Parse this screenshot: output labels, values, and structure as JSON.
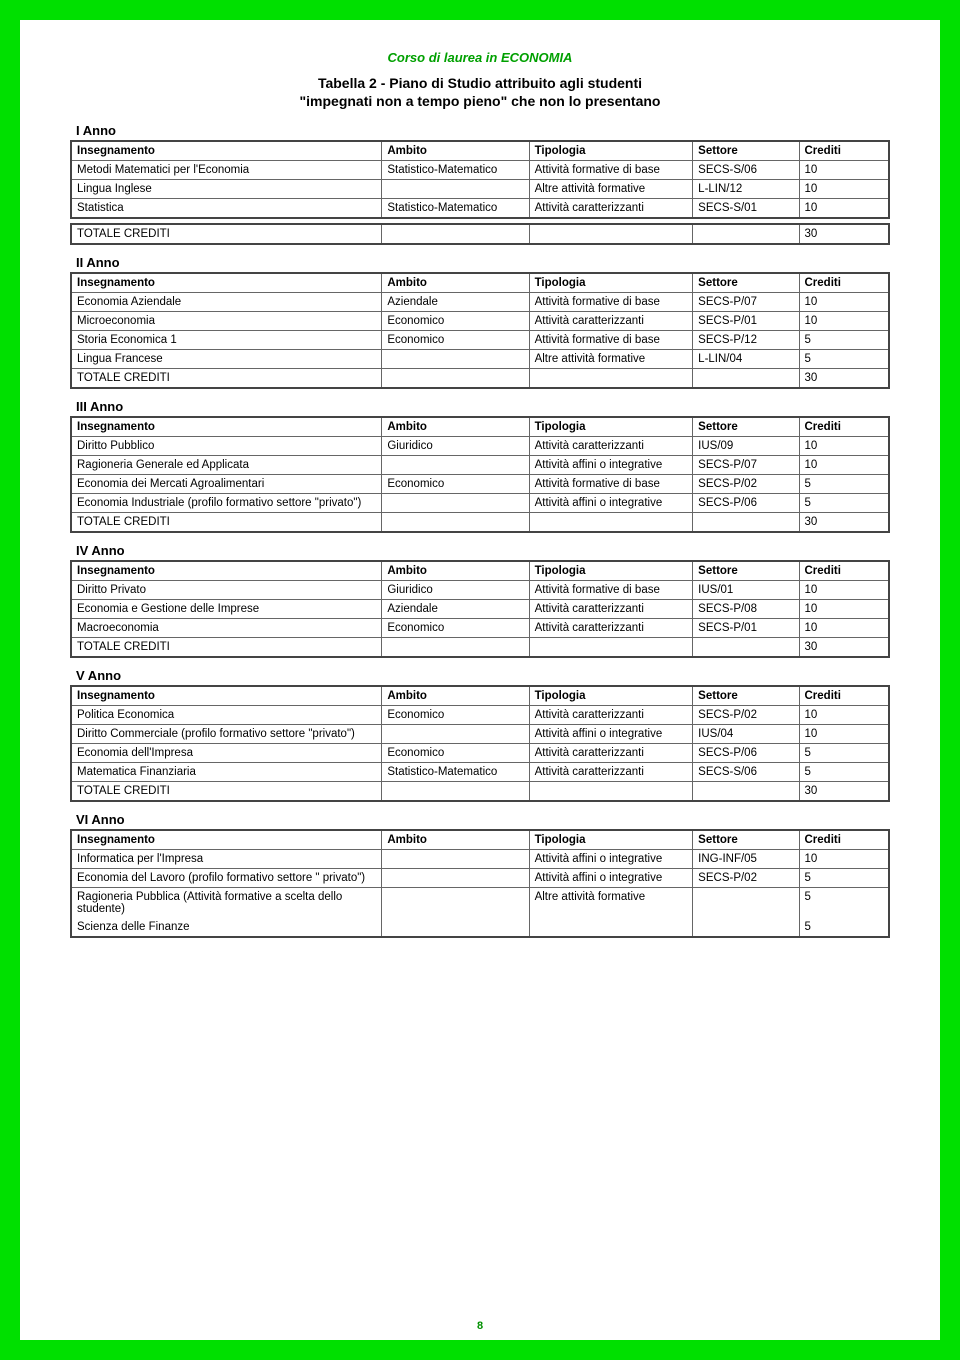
{
  "header": {
    "course": "Corso di laurea in ECONOMIA"
  },
  "titles": {
    "main": "Tabella 2 - Piano di Studio attribuito agli studenti",
    "sub": "\"impegnati non a tempo pieno\" che non lo presentano"
  },
  "columns": {
    "c1": "Insegnamento",
    "c2": "Ambito",
    "c3": "Tipologia",
    "c4": "Settore",
    "c5": "Crediti"
  },
  "total_label": "TOTALE CREDITI",
  "years": {
    "y1": {
      "label": "I Anno",
      "rows": [
        {
          "ins": "Metodi Matematici per l'Economia",
          "amb": "Statistico-Matematico",
          "tip": "Attività formative di base",
          "set": "SECS-S/06",
          "cre": "10"
        },
        {
          "ins": "Lingua Inglese",
          "amb": "",
          "tip": "Altre attività formative",
          "set": "L-LIN/12",
          "cre": "10"
        },
        {
          "ins": "Statistica",
          "amb": "Statistico-Matematico",
          "tip": "Attività caratterizzanti",
          "set": "SECS-S/01",
          "cre": "10"
        }
      ],
      "total": "30"
    },
    "y2": {
      "label": "II Anno",
      "rows": [
        {
          "ins": "Economia Aziendale",
          "amb": "Aziendale",
          "tip": "Attività formative di base",
          "set": "SECS-P/07",
          "cre": "10"
        },
        {
          "ins": "Microeconomia",
          "amb": "Economico",
          "tip": "Attività caratterizzanti",
          "set": "SECS-P/01",
          "cre": "10"
        },
        {
          "ins": "Storia Economica 1",
          "amb": "Economico",
          "tip": "Attività formative di base",
          "set": "SECS-P/12",
          "cre": "5"
        },
        {
          "ins": "Lingua Francese",
          "amb": "",
          "tip": "Altre attività formative",
          "set": "L-LIN/04",
          "cre": "5"
        }
      ],
      "total": "30"
    },
    "y3": {
      "label": "III Anno",
      "rows": [
        {
          "ins": "Diritto Pubblico",
          "amb": "Giuridico",
          "tip": "Attività caratterizzanti",
          "set": "IUS/09",
          "cre": "10"
        },
        {
          "ins": "Ragioneria Generale ed Applicata",
          "amb": "",
          "tip": "Attività affini o integrative",
          "set": "SECS-P/07",
          "cre": "10"
        },
        {
          "ins": "Economia dei Mercati Agroalimentari",
          "amb": "Economico",
          "tip": "Attività formative di base",
          "set": "SECS-P/02",
          "cre": "5"
        },
        {
          "ins": "Economia Industriale  (profilo formativo settore \"privato\")",
          "amb": "",
          "tip": "Attività affini o integrative",
          "set": "SECS-P/06",
          "cre": "5"
        }
      ],
      "total": "30"
    },
    "y4": {
      "label": "IV Anno",
      "rows": [
        {
          "ins": "Diritto Privato",
          "amb": "Giuridico",
          "tip": "Attività formative di base",
          "set": "IUS/01",
          "cre": "10"
        },
        {
          "ins": "Economia e Gestione delle Imprese",
          "amb": "Aziendale",
          "tip": "Attività caratterizzanti",
          "set": "SECS-P/08",
          "cre": "10"
        },
        {
          "ins": "Macroeconomia",
          "amb": "Economico",
          "tip": "Attività caratterizzanti",
          "set": "SECS-P/01",
          "cre": "10"
        }
      ],
      "total": "30"
    },
    "y5": {
      "label": "V Anno",
      "rows": [
        {
          "ins": "Politica Economica",
          "amb": "Economico",
          "tip": "Attività caratterizzanti",
          "set": "SECS-P/02",
          "cre": "10"
        },
        {
          "ins": "Diritto Commerciale (profilo formativo settore \"privato\")",
          "amb": "",
          "tip": "Attività affini o integrative",
          "set": "IUS/04",
          "cre": "10"
        },
        {
          "ins": "Economia dell'Impresa",
          "amb": "Economico",
          "tip": "Attività caratterizzanti",
          "set": "SECS-P/06",
          "cre": "5"
        },
        {
          "ins": "Matematica Finanziaria",
          "amb": "Statistico-Matematico",
          "tip": "Attività caratterizzanti",
          "set": "SECS-S/06",
          "cre": "5"
        }
      ],
      "total": "30"
    },
    "y6": {
      "label": "VI Anno",
      "rows": [
        {
          "ins": "Informatica per l'Impresa",
          "amb": "",
          "tip": "Attività affini o integrative",
          "set": "ING-INF/05",
          "cre": "10"
        },
        {
          "ins": "Economia del Lavoro (profilo formativo settore \" privato\")",
          "amb": "",
          "tip": "Attività affini o integrative",
          "set": "SECS-P/02",
          "cre": "5"
        },
        {
          "ins": "Ragioneria Pubblica\n(Attività formative a scelta dello studente)",
          "amb": "",
          "tip": "Altre attività formative",
          "set": "",
          "cre": "5"
        },
        {
          "ins": "Scienza delle Finanze",
          "amb": "",
          "tip": "",
          "set": "",
          "cre": "5"
        }
      ]
    }
  },
  "page_number": "8"
}
